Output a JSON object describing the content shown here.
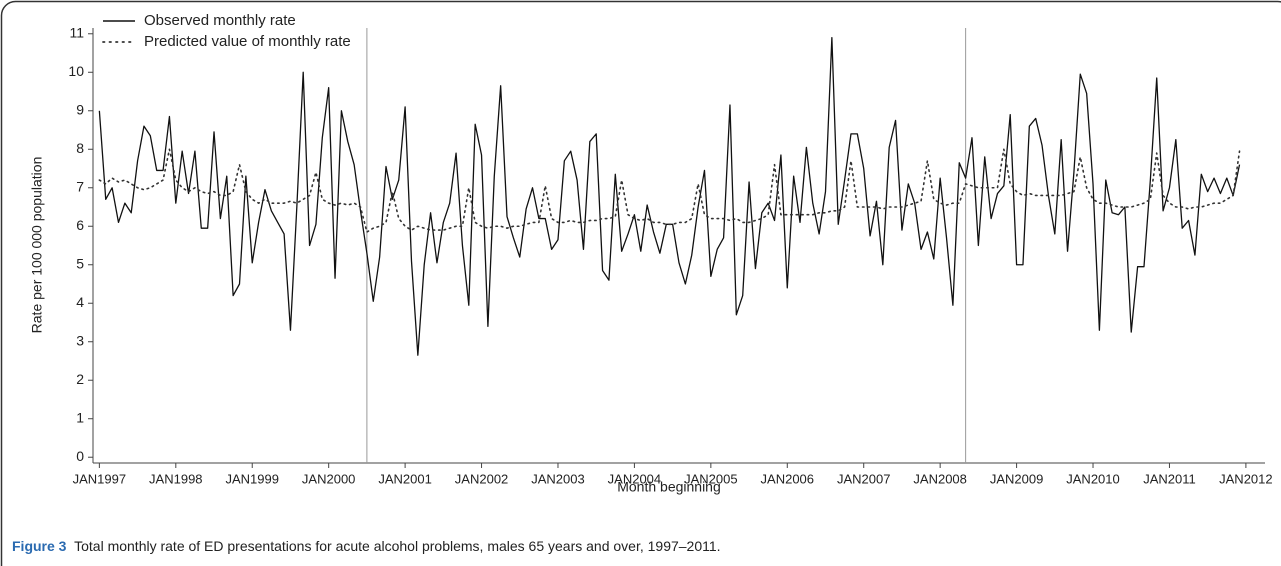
{
  "chart_data": {
    "type": "line",
    "xlabel": "Month beginning",
    "ylabel": "Rate per 100 000 population",
    "caption_label": "Figure 3",
    "caption": "Total monthly rate of ED presentations for acute alcohol problems, males 65 years and over, 1997–2011.",
    "x": [
      "1997-01",
      "1997-02",
      "1997-03",
      "1997-04",
      "1997-05",
      "1997-06",
      "1997-07",
      "1997-08",
      "1997-09",
      "1997-10",
      "1997-11",
      "1997-12",
      "1998-01",
      "1998-02",
      "1998-03",
      "1998-04",
      "1998-05",
      "1998-06",
      "1998-07",
      "1998-08",
      "1998-09",
      "1998-10",
      "1998-11",
      "1998-12",
      "1999-01",
      "1999-02",
      "1999-03",
      "1999-04",
      "1999-05",
      "1999-06",
      "1999-07",
      "1999-08",
      "1999-09",
      "1999-10",
      "1999-11",
      "1999-12",
      "2000-01",
      "2000-02",
      "2000-03",
      "2000-04",
      "2000-05",
      "2000-06",
      "2000-07",
      "2000-08",
      "2000-09",
      "2000-10",
      "2000-11",
      "2000-12",
      "2001-01",
      "2001-02",
      "2001-03",
      "2001-04",
      "2001-05",
      "2001-06",
      "2001-07",
      "2001-08",
      "2001-09",
      "2001-10",
      "2001-11",
      "2001-12",
      "2002-01",
      "2002-02",
      "2002-03",
      "2002-04",
      "2002-05",
      "2002-06",
      "2002-07",
      "2002-08",
      "2002-09",
      "2002-10",
      "2002-11",
      "2002-12",
      "2003-01",
      "2003-02",
      "2003-03",
      "2003-04",
      "2003-05",
      "2003-06",
      "2003-07",
      "2003-08",
      "2003-09",
      "2003-10",
      "2003-11",
      "2003-12",
      "2004-01",
      "2004-02",
      "2004-03",
      "2004-04",
      "2004-05",
      "2004-06",
      "2004-07",
      "2004-08",
      "2004-09",
      "2004-10",
      "2004-11",
      "2004-12",
      "2005-01",
      "2005-02",
      "2005-03",
      "2005-04",
      "2005-05",
      "2005-06",
      "2005-07",
      "2005-08",
      "2005-09",
      "2005-10",
      "2005-11",
      "2005-12",
      "2006-01",
      "2006-02",
      "2006-03",
      "2006-04",
      "2006-05",
      "2006-06",
      "2006-07",
      "2006-08",
      "2006-09",
      "2006-10",
      "2006-11",
      "2006-12",
      "2007-01",
      "2007-02",
      "2007-03",
      "2007-04",
      "2007-05",
      "2007-06",
      "2007-07",
      "2007-08",
      "2007-09",
      "2007-10",
      "2007-11",
      "2007-12",
      "2008-01",
      "2008-02",
      "2008-03",
      "2008-04",
      "2008-05",
      "2008-06",
      "2008-07",
      "2008-08",
      "2008-09",
      "2008-10",
      "2008-11",
      "2008-12",
      "2009-01",
      "2009-02",
      "2009-03",
      "2009-04",
      "2009-05",
      "2009-06",
      "2009-07",
      "2009-08",
      "2009-09",
      "2009-10",
      "2009-11",
      "2009-12",
      "2010-01",
      "2010-02",
      "2010-03",
      "2010-04",
      "2010-05",
      "2010-06",
      "2010-07",
      "2010-08",
      "2010-09",
      "2010-10",
      "2010-11",
      "2010-12",
      "2011-01",
      "2011-02",
      "2011-03",
      "2011-04",
      "2011-05",
      "2011-06",
      "2011-07",
      "2011-08",
      "2011-09",
      "2011-10",
      "2011-11",
      "2011-12"
    ],
    "series": [
      {
        "name": "Observed monthly rate",
        "color": "#111111",
        "style": "solid",
        "values": [
          9.0,
          6.7,
          7.0,
          6.1,
          6.6,
          6.35,
          7.7,
          8.6,
          8.35,
          7.45,
          7.45,
          8.85,
          6.6,
          7.95,
          6.85,
          7.95,
          5.95,
          5.95,
          8.45,
          6.2,
          7.3,
          4.2,
          4.5,
          7.3,
          5.05,
          6.1,
          6.95,
          6.4,
          6.1,
          5.8,
          3.3,
          6.5,
          10.0,
          5.5,
          6.05,
          8.3,
          9.6,
          4.65,
          9.0,
          8.2,
          7.6,
          6.4,
          5.3,
          4.05,
          5.2,
          7.55,
          6.7,
          7.2,
          9.1,
          5.1,
          2.65,
          5.0,
          6.35,
          5.05,
          6.1,
          6.6,
          7.9,
          5.5,
          3.95,
          8.65,
          7.85,
          3.4,
          7.3,
          9.65,
          6.25,
          5.7,
          5.2,
          6.45,
          7.0,
          6.2,
          6.2,
          5.4,
          5.65,
          7.7,
          7.95,
          7.2,
          5.4,
          8.2,
          8.4,
          4.85,
          4.6,
          7.35,
          5.35,
          5.8,
          6.3,
          5.35,
          6.55,
          5.85,
          5.3,
          6.05,
          6.05,
          5.05,
          4.5,
          5.25,
          6.5,
          7.45,
          4.7,
          5.4,
          5.7,
          9.15,
          3.7,
          4.2,
          7.15,
          4.9,
          6.35,
          6.6,
          6.15,
          7.85,
          4.4,
          7.3,
          6.1,
          8.05,
          6.6,
          5.8,
          6.9,
          10.9,
          6.05,
          7.2,
          8.4,
          8.4,
          7.5,
          5.75,
          6.65,
          5.0,
          8.05,
          8.75,
          5.9,
          7.1,
          6.6,
          5.4,
          5.85,
          5.15,
          7.25,
          5.7,
          3.95,
          7.65,
          7.25,
          8.3,
          5.5,
          7.8,
          6.2,
          6.85,
          7.05,
          8.9,
          5.0,
          5.0,
          8.6,
          8.8,
          8.1,
          6.8,
          5.8,
          8.25,
          5.35,
          7.4,
          9.95,
          9.45,
          7.1,
          3.3,
          7.2,
          6.35,
          6.3,
          6.5,
          3.25,
          4.95,
          4.95,
          7.2,
          9.85,
          6.4,
          7.0,
          8.25,
          5.95,
          6.15,
          5.25,
          7.35,
          6.9,
          7.25,
          6.85,
          7.25,
          6.8,
          7.6
        ]
      },
      {
        "name": "Predicted value of monthly rate",
        "color": "#333333",
        "style": "dotted",
        "values": [
          7.2,
          7.1,
          7.25,
          7.15,
          7.2,
          7.1,
          7.0,
          6.95,
          7.0,
          7.1,
          7.2,
          8.0,
          7.2,
          7.0,
          6.9,
          7.0,
          6.9,
          6.85,
          6.9,
          6.8,
          6.8,
          6.9,
          7.6,
          6.9,
          6.7,
          6.6,
          6.7,
          6.6,
          6.6,
          6.6,
          6.65,
          6.6,
          6.7,
          6.8,
          7.4,
          6.7,
          6.6,
          6.55,
          6.6,
          6.55,
          6.6,
          6.5,
          5.85,
          5.95,
          6.0,
          6.1,
          6.9,
          6.2,
          6.0,
          5.9,
          6.0,
          5.95,
          5.9,
          5.9,
          5.9,
          5.95,
          6.0,
          6.0,
          7.0,
          6.1,
          6.0,
          5.95,
          6.0,
          6.0,
          5.95,
          6.0,
          6.0,
          6.05,
          6.1,
          6.1,
          7.05,
          6.2,
          6.1,
          6.1,
          6.15,
          6.1,
          6.1,
          6.15,
          6.15,
          6.2,
          6.2,
          6.25,
          7.2,
          6.3,
          6.2,
          6.15,
          6.2,
          6.1,
          6.1,
          6.05,
          6.05,
          6.1,
          6.1,
          6.2,
          7.1,
          6.3,
          6.2,
          6.2,
          6.2,
          6.15,
          6.2,
          6.1,
          6.1,
          6.15,
          6.2,
          6.3,
          7.6,
          6.3,
          6.3,
          6.3,
          6.3,
          6.3,
          6.3,
          6.35,
          6.35,
          6.4,
          6.4,
          6.5,
          7.7,
          6.5,
          6.5,
          6.5,
          6.5,
          6.45,
          6.5,
          6.5,
          6.5,
          6.55,
          6.6,
          6.65,
          7.7,
          6.7,
          6.6,
          6.55,
          6.6,
          6.6,
          7.1,
          7.05,
          7.0,
          7.0,
          7.0,
          7.0,
          8.0,
          7.1,
          6.9,
          6.8,
          6.85,
          6.8,
          6.8,
          6.8,
          6.8,
          6.8,
          6.85,
          6.9,
          7.8,
          7.0,
          6.7,
          6.6,
          6.6,
          6.55,
          6.5,
          6.5,
          6.5,
          6.55,
          6.6,
          6.7,
          7.9,
          6.8,
          6.6,
          6.5,
          6.5,
          6.45,
          6.5,
          6.5,
          6.55,
          6.6,
          6.6,
          6.7,
          6.8,
          7.95
        ]
      }
    ],
    "reference_lines_x": [
      "2000-07",
      "2008-05"
    ],
    "xlim": [
      "1996-12",
      "2012-04"
    ],
    "xticks": [
      {
        "value": "1997-01",
        "label": "JAN1997"
      },
      {
        "value": "1998-01",
        "label": "JAN1998"
      },
      {
        "value": "1999-01",
        "label": "JAN1999"
      },
      {
        "value": "2000-01",
        "label": "JAN2000"
      },
      {
        "value": "2001-01",
        "label": "JAN2001"
      },
      {
        "value": "2002-01",
        "label": "JAN2002"
      },
      {
        "value": "2003-01",
        "label": "JAN2003"
      },
      {
        "value": "2004-01",
        "label": "JAN2004"
      },
      {
        "value": "2005-01",
        "label": "JAN2005"
      },
      {
        "value": "2006-01",
        "label": "JAN2006"
      },
      {
        "value": "2007-01",
        "label": "JAN2007"
      },
      {
        "value": "2008-01",
        "label": "JAN2008"
      },
      {
        "value": "2009-01",
        "label": "JAN2009"
      },
      {
        "value": "2010-01",
        "label": "JAN2010"
      },
      {
        "value": "2011-01",
        "label": "JAN2011"
      },
      {
        "value": "2012-01",
        "label": "JAN2012"
      }
    ],
    "ylim": [
      -0.15,
      11.15
    ],
    "yticks": [
      0,
      1,
      2,
      3,
      4,
      5,
      6,
      7,
      8,
      9,
      10,
      11
    ],
    "grid": false,
    "legend": "upper left"
  }
}
